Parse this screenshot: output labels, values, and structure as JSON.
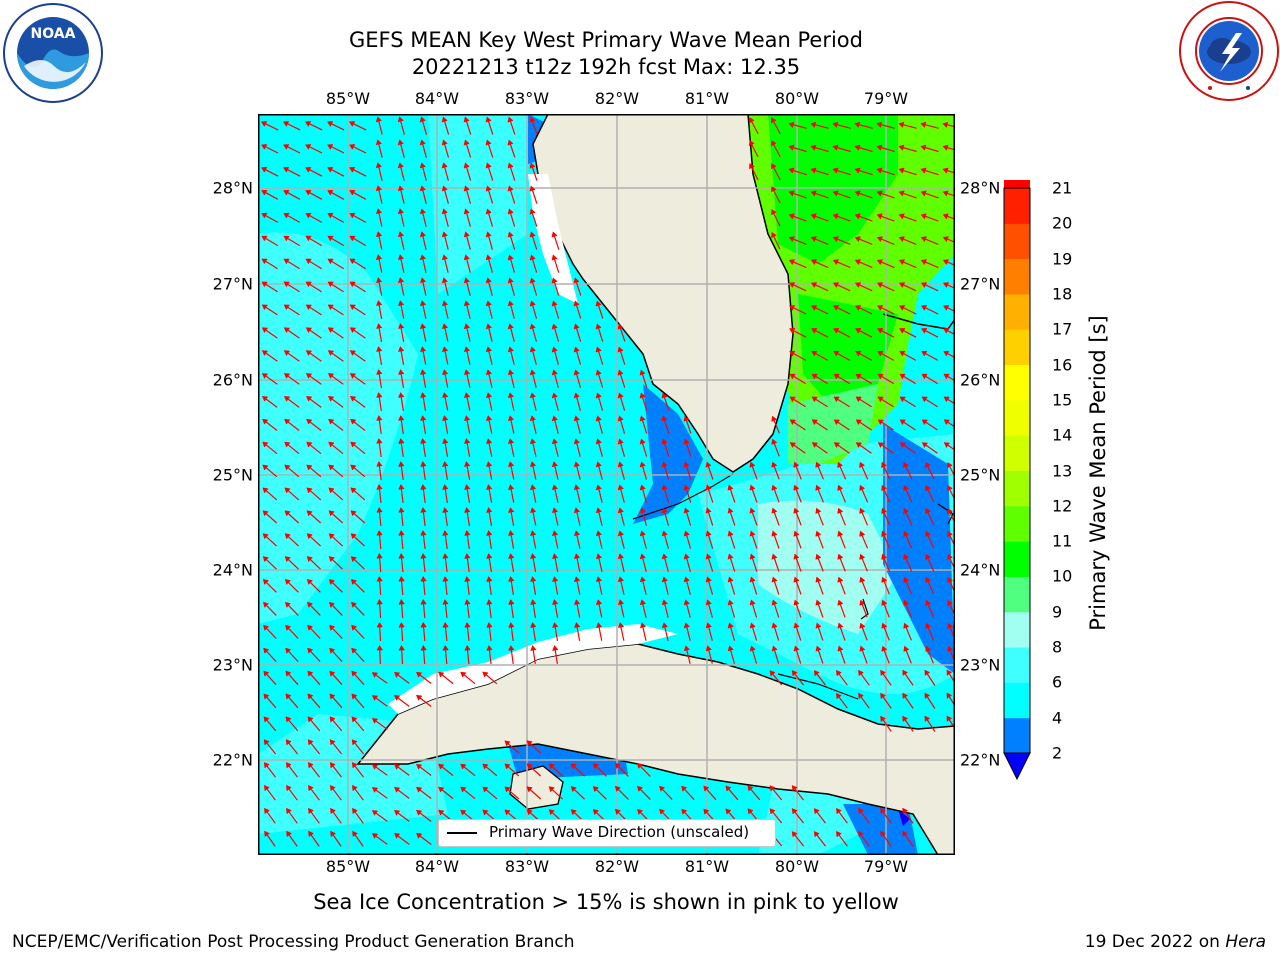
{
  "header": {
    "title_line1": "GEFS MEAN Key West Primary Wave Mean Period",
    "title_line2": "20221213 t12z 192h fcst   Max: 12.35"
  },
  "logos": {
    "noaa_text": "NOAA",
    "noaa_ring_text": "NATIONAL OCEANIC AND ATMOSPHERIC ADMINISTRATION · U.S. DEPARTMENT OF COMMERCE",
    "nws_ring_text": "NATIONAL WEATHER SERVICE"
  },
  "map": {
    "lon_labels": [
      "85°W",
      "84°W",
      "83°W",
      "82°W",
      "81°W",
      "80°W",
      "79°W"
    ],
    "lat_labels": [
      "28°N",
      "27°N",
      "26°N",
      "25°N",
      "24°N",
      "23°N",
      "22°N"
    ],
    "legend_label": "Primary Wave Direction (unscaled)",
    "arrow_color": "#ff0000",
    "land_color": "#eeecdc"
  },
  "colorbar": {
    "label": "Primary Wave Mean Period [s]",
    "ticks": [
      "2",
      "4",
      "6",
      "8",
      "9",
      "10",
      "11",
      "12",
      "13",
      "14",
      "15",
      "16",
      "17",
      "18",
      "19",
      "20",
      "21"
    ],
    "colors": [
      "#0000ff",
      "#0080ff",
      "#00ffff",
      "#40ffff",
      "#a0fff0",
      "#50ff80",
      "#00ff00",
      "#60ff00",
      "#a0ff00",
      "#d0ff00",
      "#f0ff00",
      "#ffff00",
      "#ffd000",
      "#ffb000",
      "#ff8000",
      "#ff5000",
      "#ff2000",
      "#ff0000"
    ]
  },
  "caption": "Sea Ice Concentration > 15% is shown in pink to yellow",
  "footer": {
    "left": "NCEP/EMC/Verification Post Processing Product Generation Branch",
    "right_date": "19 Dec 2022 on ",
    "right_host": "Hera"
  }
}
